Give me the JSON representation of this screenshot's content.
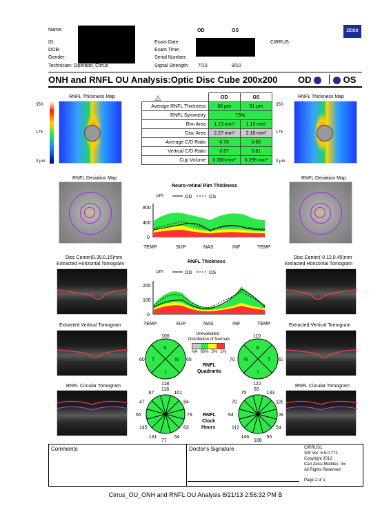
{
  "header": {
    "name_label": "Name:",
    "id_label": "ID:",
    "dob_label": "DOB:",
    "gender_label": "Gender:",
    "technician_label": "Technician:",
    "technician_value": "Operator, Cirrus",
    "exam_date_label": "Exam Date:",
    "exam_time_label": "Exam Time:",
    "serial_label": "Serial Number:",
    "signal_label": "Signal Strength:",
    "od": "OD",
    "os": "OS",
    "signal_od": "7/10",
    "signal_os": "9/10",
    "device": "CIRRUS",
    "logo": "ZEISS"
  },
  "title": "ONH and RNFL OU Analysis:Optic Disc Cube 200x200",
  "eye_od": "OD",
  "eye_os": "OS",
  "thickness_map": {
    "label": "RNFL Thickness Map",
    "s350": "350",
    "s175": "175",
    "s0": "0 µm"
  },
  "metrics": {
    "col_od": "OD",
    "col_os": "OS",
    "rows": [
      {
        "label": "Average RNFL Thickness",
        "od": "86 µm",
        "os": "91 µm"
      },
      {
        "label": "RNFL Symmetry",
        "both": "73%"
      },
      {
        "label": "Rim Area",
        "od": "1.13 mm²",
        "os": "1.19 mm²"
      },
      {
        "label": "Disc Area",
        "od": "2.27 mm²",
        "os": "2.18 mm²"
      },
      {
        "label": "Average C/D Ratio",
        "od": "0.70",
        "os": "0.66"
      },
      {
        "label": "Vertical C/D Ratio",
        "od": "0.67",
        "os": "0.61"
      },
      {
        "label": "Cup Volume",
        "od": "0.380 mm³",
        "os": "0.298 mm³"
      }
    ]
  },
  "deviation": {
    "label": "RNFL Deviation Map",
    "center_od": "Disc Center(0.39,0.15)mm",
    "center_os": "Disc Center(-0.12,0.45)mm"
  },
  "rim_chart": {
    "title": "Neuro-retinal Rim Thickness",
    "unit": "µm",
    "legend_od": "OD",
    "legend_os": "OS",
    "ticks": [
      "800",
      "400",
      "0"
    ],
    "xlabels": [
      "TEMP",
      "SUP",
      "NAS",
      "INF",
      "TEMP"
    ]
  },
  "rnfl_chart": {
    "title": "RNFL Thickness",
    "unit": "µm",
    "legend_od": "OD",
    "legend_os": "OS",
    "ticks": [
      "200",
      "100",
      "0"
    ],
    "xlabels": [
      "TEMP",
      "SUP",
      "NAS",
      "INF",
      "TEMP"
    ]
  },
  "tomograms": {
    "horizontal": "Extracted Horizontal Tomogram",
    "vertical": "Extracted Vertical Tomogram",
    "circular": "RNFL Circular Tomogram"
  },
  "quadrants": {
    "od": {
      "top": "100",
      "left": "60",
      "right": "65",
      "bottom": "118",
      "s": "S",
      "t": "T",
      "n": "N",
      "i": "I"
    },
    "os": {
      "top": "110",
      "left": "70",
      "right": "63",
      "bottom": "122",
      "s": "S",
      "t": "T",
      "n": "N",
      "i": "I"
    },
    "label1": "RNFL",
    "label2": "Quadrants"
  },
  "legend": {
    "line1": "Unevaluated",
    "line2": "Distribution of Normals",
    "ticks": [
      "NA",
      "95%",
      "5%",
      "1%"
    ]
  },
  "clock": {
    "od": [
      "116",
      "101",
      "84",
      "79",
      "63",
      "54",
      "77",
      "131",
      "145",
      "65",
      "47",
      "67"
    ],
    "os": [
      "93",
      "133",
      "105",
      "80",
      "54",
      "55",
      "108",
      "146",
      "112",
      "64",
      "70",
      "75"
    ],
    "label1": "RNFL",
    "label2": "Clock",
    "label3": "Hours"
  },
  "footer": {
    "comments": "Comments",
    "signature": "Doctor's Signature",
    "info": [
      "CIRRUS1",
      "SW Ver: 6.5.0.772",
      "Copyright 2012",
      "Carl Zeiss Meditec, Inc",
      "All Rights Reserved"
    ],
    "page": "Page 1 of 1"
  },
  "caption": "Cirrus_OU_ONH and RNFL OU Analysis 8/21/13 2:56:32 PM B",
  "colors": {
    "normal": "#2ee84a",
    "borderline": "#ffff00",
    "abnormal": "#ff3333",
    "dot": "#1f2f8a"
  }
}
